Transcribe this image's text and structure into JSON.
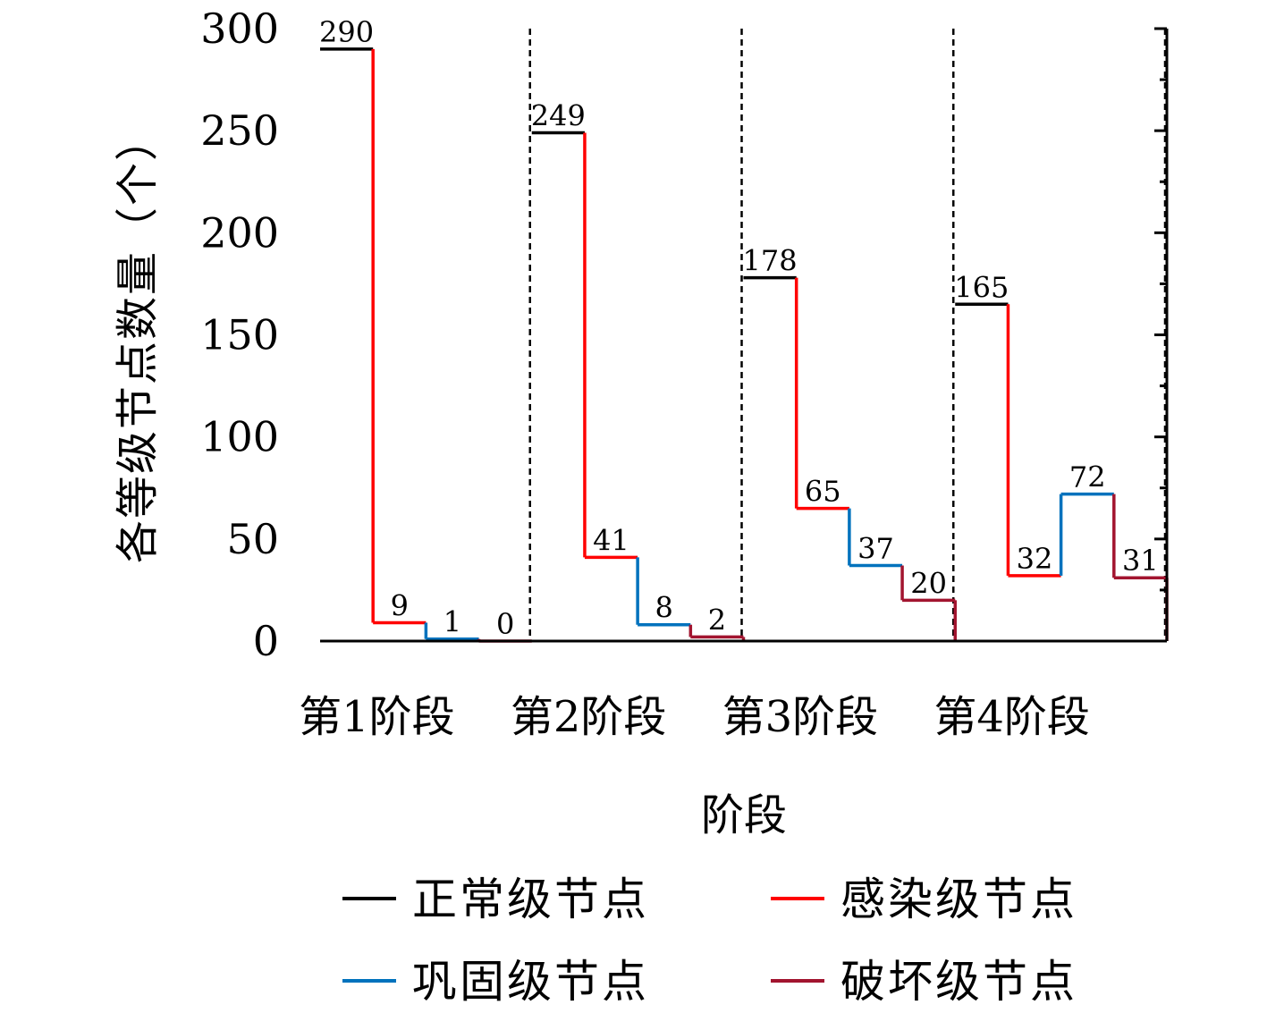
{
  "chart_data": {
    "type": "line",
    "subtype": "step",
    "title": "",
    "xlabel": "阶段",
    "ylabel": "各等级节点数量（个）",
    "ylim": [
      0,
      300
    ],
    "yticks": [
      0,
      50,
      100,
      150,
      200,
      250,
      300
    ],
    "grid": false,
    "legend_position": "bottom",
    "categories": [
      "第1阶段",
      "第2阶段",
      "第3阶段",
      "第4阶段"
    ],
    "series": [
      {
        "name": "正常级节点",
        "color": "#000000",
        "values": [
          290,
          249,
          178,
          165
        ]
      },
      {
        "name": "感染级节点",
        "color": "#ff0000",
        "values": [
          9,
          41,
          65,
          32
        ]
      },
      {
        "name": "巩固级节点",
        "color": "#0072bd",
        "values": [
          1,
          8,
          37,
          72
        ]
      },
      {
        "name": "破坏级节点",
        "color": "#a2142f",
        "values": [
          0,
          2,
          20,
          31
        ]
      }
    ]
  }
}
